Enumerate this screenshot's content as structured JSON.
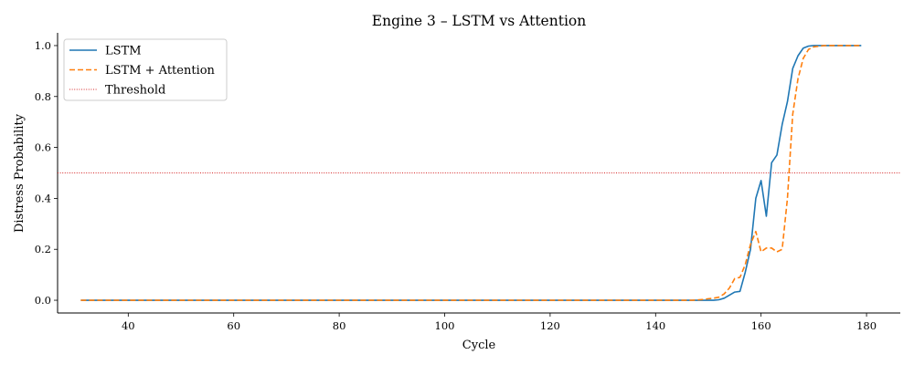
{
  "chart_data": {
    "type": "line",
    "title": "Engine 3 – LSTM vs Attention",
    "xlabel": "Cycle",
    "ylabel": "Distress Probability",
    "xlim": [
      26.6,
      186.4
    ],
    "ylim": [
      -0.05,
      1.05
    ],
    "xticks": [
      40,
      60,
      80,
      100,
      120,
      140,
      160,
      180
    ],
    "yticks": [
      0.0,
      0.2,
      0.4,
      0.6,
      0.8,
      1.0
    ],
    "xtick_labels": [
      "40",
      "60",
      "80",
      "100",
      "120",
      "140",
      "160",
      "180"
    ],
    "ytick_labels": [
      "0.0",
      "0.2",
      "0.4",
      "0.6",
      "0.8",
      "1.0"
    ],
    "grid": false,
    "legend_position": "upper-left",
    "threshold": {
      "name": "Threshold",
      "value": 0.5,
      "color": "#d62728",
      "style": "dotted"
    },
    "series": [
      {
        "name": "LSTM",
        "color": "#1f77b4",
        "style": "solid",
        "x": [
          31,
          148,
          150,
          151,
          152,
          153,
          154,
          155,
          156,
          157,
          158,
          159,
          160,
          161,
          162,
          163,
          164,
          165,
          166,
          167,
          168,
          169,
          170,
          172,
          175,
          179
        ],
        "y": [
          0.0,
          0.0,
          0.0,
          0.0,
          0.002,
          0.008,
          0.02,
          0.032,
          0.035,
          0.11,
          0.2,
          0.4,
          0.47,
          0.33,
          0.54,
          0.57,
          0.69,
          0.78,
          0.91,
          0.96,
          0.99,
          0.998,
          1.0,
          1.0,
          1.0,
          1.0
        ]
      },
      {
        "name": "LSTM + Attention",
        "color": "#ff7f0e",
        "style": "dashed",
        "x": [
          31,
          147,
          149,
          150,
          151,
          152,
          153,
          154,
          155,
          156,
          157,
          158,
          159,
          160,
          161,
          162,
          163,
          164,
          165,
          166,
          167,
          168,
          169,
          170,
          172,
          175,
          179
        ],
        "y": [
          0.0,
          0.0,
          0.003,
          0.006,
          0.008,
          0.012,
          0.025,
          0.048,
          0.085,
          0.09,
          0.14,
          0.22,
          0.27,
          0.19,
          0.205,
          0.205,
          0.19,
          0.2,
          0.4,
          0.73,
          0.87,
          0.95,
          0.985,
          0.995,
          1.0,
          1.0,
          1.0
        ]
      }
    ]
  }
}
